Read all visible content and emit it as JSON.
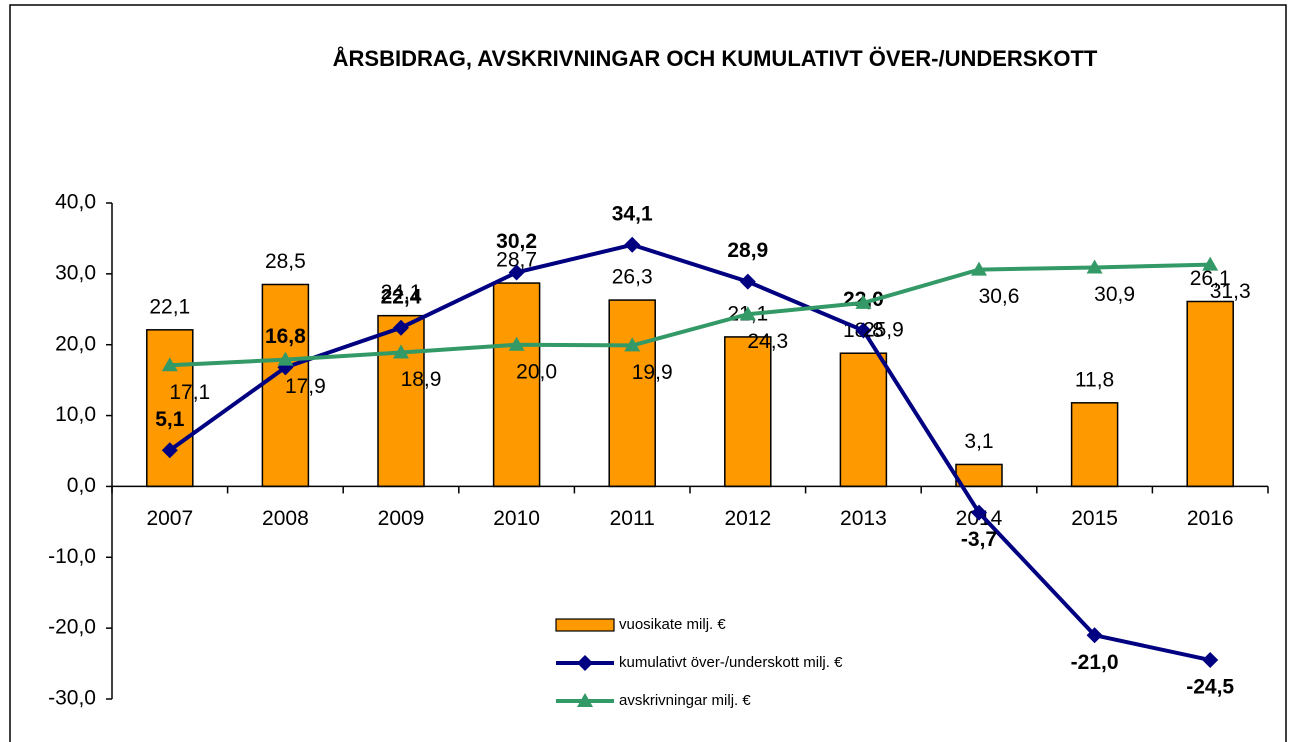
{
  "chart_data": {
    "type": "bar",
    "title": "ÅRSBIDRAG, AVSKRIVNINGAR OCH KUMULATIVT ÖVER-/UNDERSKOTT",
    "categories": [
      "2007",
      "2008",
      "2009",
      "2010",
      "2011",
      "2012",
      "2013",
      "2014",
      "2015",
      "2016"
    ],
    "series": [
      {
        "name": "vuosikate milj. €",
        "type": "bar",
        "color": "#ff9900",
        "values": [
          22.1,
          28.5,
          24.1,
          28.7,
          26.3,
          21.1,
          18.8,
          3.1,
          11.8,
          26.1
        ],
        "value_labels": [
          "22,1",
          "28,5",
          "24,1",
          "28,7",
          "26,3",
          "21,1",
          "18,8",
          "3,1",
          "11,8",
          "26,1"
        ]
      },
      {
        "name": "kumulativt över-/underskott milj. €",
        "type": "line",
        "marker": "diamond",
        "color": "#000080",
        "values": [
          5.1,
          16.8,
          22.4,
          30.2,
          34.1,
          28.9,
          22.0,
          -3.7,
          -21.0,
          -24.5
        ],
        "value_labels": [
          "5,1",
          "16,8",
          "22,4",
          "30,2",
          "34,1",
          "28,9",
          "22,0",
          "-3,7",
          "-21,0",
          "-24,5"
        ]
      },
      {
        "name": "avskrivningar milj. €",
        "type": "line",
        "marker": "triangle",
        "color": "#339966",
        "values": [
          17.1,
          17.9,
          18.9,
          20.0,
          19.9,
          24.3,
          25.9,
          30.6,
          30.9,
          31.3
        ],
        "value_labels": [
          "17,1",
          "17,9",
          "18,9",
          "20,0",
          "19,9",
          "24,3",
          "25,9",
          "30,6",
          "30,9",
          "31,3"
        ]
      }
    ],
    "ylim": [
      -30,
      40
    ],
    "yticks": [
      {
        "value": -30,
        "label": "-30,0"
      },
      {
        "value": -20,
        "label": "-20,0"
      },
      {
        "value": -10,
        "label": "-10,0"
      },
      {
        "value": 0,
        "label": "0,0"
      },
      {
        "value": 10,
        "label": "10,0"
      },
      {
        "value": 20,
        "label": "20,0"
      },
      {
        "value": 30,
        "label": "30,0"
      },
      {
        "value": 40,
        "label": "40,0"
      }
    ],
    "legend": "bottom"
  }
}
